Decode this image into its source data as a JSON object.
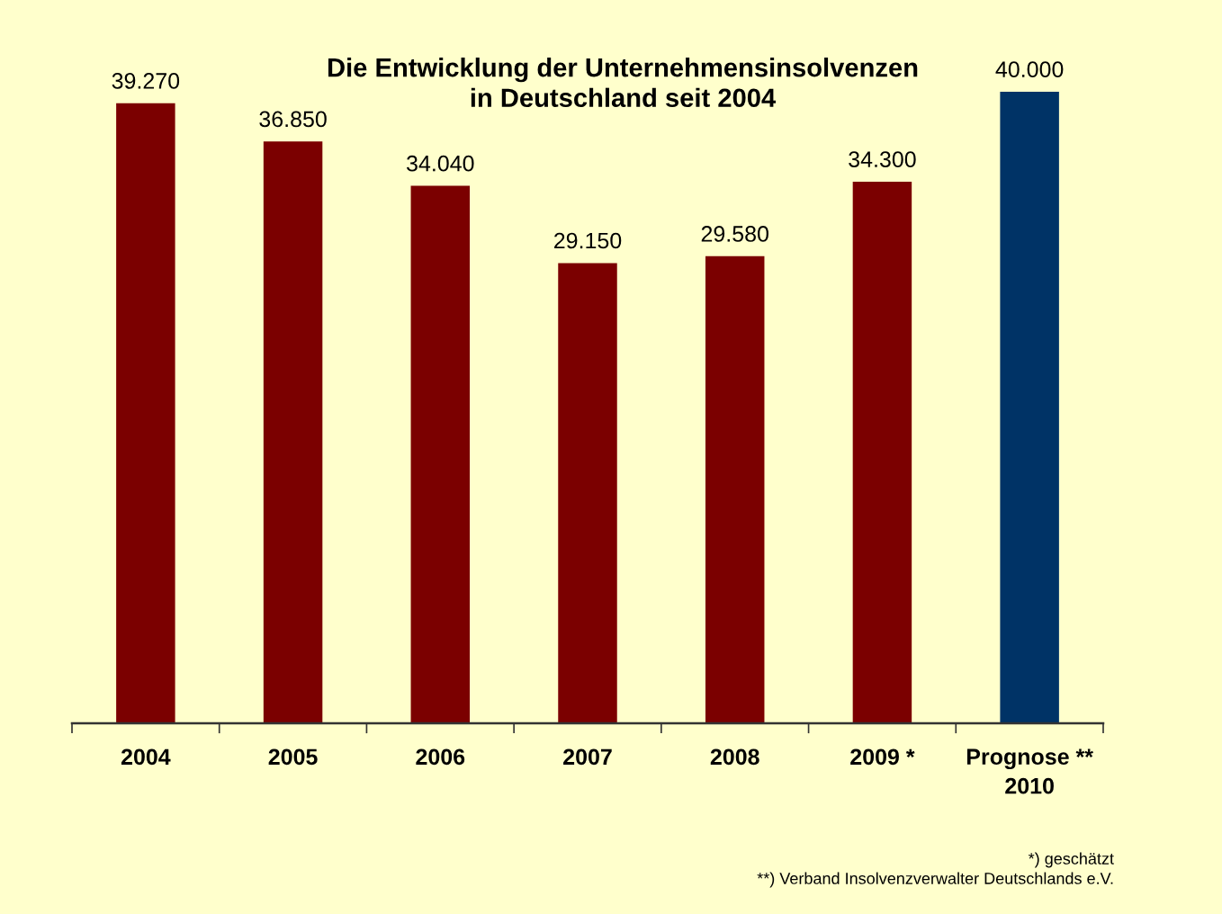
{
  "chart_data": {
    "type": "bar",
    "title": "Die Entwicklung der Unternehmensinsolvenzen\nin Deutschland seit 2004",
    "categories": [
      "2004",
      "2005",
      "2006",
      "2007",
      "2008",
      "2009 *",
      "Prognose **\n2010"
    ],
    "values": [
      39270,
      36850,
      34040,
      29150,
      29580,
      34300,
      40000
    ],
    "colors": [
      "#7b0000",
      "#7b0000",
      "#7b0000",
      "#7b0000",
      "#7b0000",
      "#7b0000",
      "#003366"
    ],
    "value_labels": [
      "39.270",
      "36.850",
      "34.040",
      "29.150",
      "29.580",
      "34.300",
      "40.000"
    ],
    "annotations": [
      "*) geschätzt",
      "**) Verband Insolvenzverwalter Deutschlands e.V."
    ]
  }
}
